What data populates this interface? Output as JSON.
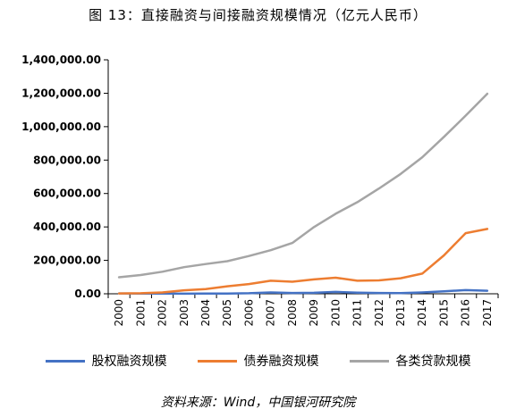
{
  "title": "图 13：直接融资与间接融资规模情况（亿元人民币）",
  "source": "资料来源：Wind，中国银河研究院",
  "chart_data": {
    "type": "line",
    "x": [
      "2000",
      "2001",
      "2002",
      "2003",
      "2004",
      "2005",
      "2006",
      "2007",
      "2008",
      "2009",
      "2010",
      "2011",
      "2012",
      "2013",
      "2014",
      "2015",
      "2016",
      "2017"
    ],
    "ylim": [
      0,
      1400000
    ],
    "yticks": [
      "0.00",
      "200,000.00",
      "400,000.00",
      "600,000.00",
      "800,000.00",
      "1,000,000.00",
      "1,200,000.00",
      "1,400,000.00"
    ],
    "grid": false,
    "legend_position": "bottom",
    "series": [
      {
        "name": "股权融资规模",
        "color": "#4472C4",
        "values": [
          2000,
          1500,
          1000,
          800,
          1000,
          1500,
          3000,
          8000,
          5000,
          6000,
          11000,
          7000,
          5000,
          4000,
          8000,
          15000,
          22000,
          18000
        ]
      },
      {
        "name": "债券融资规模",
        "color": "#ED7D31",
        "values": [
          2000,
          3000,
          8000,
          21000,
          28000,
          45000,
          58000,
          78000,
          72000,
          86000,
          96000,
          78000,
          80000,
          93000,
          121000,
          230000,
          363000,
          388000
        ]
      },
      {
        "name": "各类贷款规模",
        "color": "#A5A5A5",
        "values": [
          99000,
          112000,
          132000,
          159000,
          178000,
          195000,
          226000,
          261000,
          304000,
          399000,
          479000,
          548000,
          630000,
          717000,
          817000,
          939000,
          1066000,
          1197000
        ]
      }
    ]
  }
}
